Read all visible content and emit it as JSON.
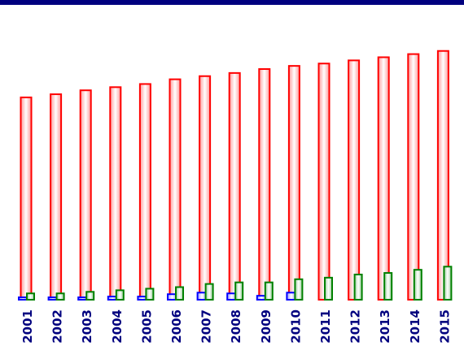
{
  "chart_data": {
    "type": "bar",
    "categories": [
      "2001",
      "2002",
      "2003",
      "2004",
      "2005",
      "2006",
      "2007",
      "2008",
      "2009",
      "2010",
      "2011",
      "2012",
      "2013",
      "2014",
      "2015"
    ],
    "series": [
      {
        "color": "#ff0000",
        "values": [
          257,
          261,
          266,
          270,
          274,
          280,
          284,
          288,
          293,
          297,
          300,
          304,
          308,
          312,
          316
        ]
      },
      {
        "color": "#0000ff",
        "values": [
          3,
          3,
          3,
          4,
          4,
          7,
          9,
          8,
          5,
          9,
          0,
          0,
          0,
          0,
          0
        ]
      },
      {
        "color": "#008000",
        "values": [
          8,
          8,
          10,
          12,
          14,
          16,
          20,
          22,
          22,
          26,
          28,
          32,
          34,
          38,
          42
        ]
      }
    ],
    "ylim": [
      0,
      325
    ],
    "grid": false,
    "legend": "none",
    "frame_color": "#00007f"
  }
}
